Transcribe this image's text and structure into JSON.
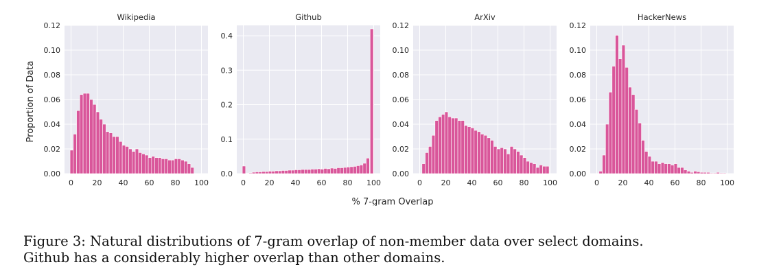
{
  "chart_data": {
    "type": "bar",
    "xlabel": "% 7-gram Overlap",
    "ylabel": "Proportion of Data",
    "xlim": [
      0,
      100
    ],
    "xticks": [
      0,
      20,
      40,
      60,
      80,
      100
    ],
    "panels": [
      {
        "title": "Wikipedia",
        "ylim": [
          0,
          0.12
        ],
        "yticks": [
          0.0,
          0.02,
          0.04,
          0.06,
          0.08,
          0.1,
          0.12
        ],
        "ytick_labels": [
          "0.00",
          "0.02",
          "0.04",
          "0.06",
          "0.08",
          "0.10",
          "0.12"
        ],
        "x": [
          0.5,
          3,
          5.5,
          8,
          10.5,
          13,
          15.5,
          18,
          20.5,
          23,
          25.5,
          28,
          30.5,
          33,
          35.5,
          38,
          40.5,
          43,
          45.5,
          48,
          50.5,
          53,
          55.5,
          58,
          60.5,
          63,
          65.5,
          68,
          70.5,
          73,
          75.5,
          78,
          80.5,
          83,
          85.5,
          88,
          90.5,
          93,
          95.5,
          98
        ],
        "values": [
          0.019,
          0.032,
          0.051,
          0.064,
          0.065,
          0.065,
          0.06,
          0.056,
          0.05,
          0.044,
          0.04,
          0.034,
          0.033,
          0.03,
          0.03,
          0.026,
          0.023,
          0.022,
          0.02,
          0.018,
          0.02,
          0.017,
          0.016,
          0.015,
          0.013,
          0.014,
          0.013,
          0.013,
          0.012,
          0.012,
          0.011,
          0.011,
          0.012,
          0.012,
          0.011,
          0.01,
          0.008,
          0.005,
          0.0,
          0.0
        ]
      },
      {
        "title": "Github",
        "ylim": [
          0,
          0.43
        ],
        "yticks": [
          0.0,
          0.1,
          0.2,
          0.3,
          0.4
        ],
        "ytick_labels": [
          "0.0",
          "0.1",
          "0.2",
          "0.3",
          "0.4"
        ],
        "x": [
          0.5,
          3,
          5.5,
          8,
          10.5,
          13,
          15.5,
          18,
          20.5,
          23,
          25.5,
          28,
          30.5,
          33,
          35.5,
          38,
          40.5,
          43,
          45.5,
          48,
          50.5,
          53,
          55.5,
          58,
          60.5,
          63,
          65.5,
          68,
          70.5,
          73,
          75.5,
          78,
          80.5,
          83,
          85.5,
          88,
          90.5,
          93,
          95.5,
          98.5
        ],
        "values": [
          0.022,
          0.001,
          0.002,
          0.004,
          0.005,
          0.005,
          0.006,
          0.006,
          0.007,
          0.007,
          0.008,
          0.008,
          0.009,
          0.009,
          0.01,
          0.01,
          0.011,
          0.011,
          0.012,
          0.012,
          0.012,
          0.013,
          0.013,
          0.014,
          0.013,
          0.015,
          0.014,
          0.016,
          0.015,
          0.017,
          0.017,
          0.018,
          0.019,
          0.02,
          0.021,
          0.023,
          0.025,
          0.03,
          0.045,
          0.42
        ]
      },
      {
        "title": "ArXiv",
        "ylim": [
          0,
          0.12
        ],
        "yticks": [
          0.0,
          0.02,
          0.04,
          0.06,
          0.08,
          0.1,
          0.12
        ],
        "ytick_labels": [
          "0.00",
          "0.02",
          "0.04",
          "0.06",
          "0.08",
          "0.10",
          "0.12"
        ],
        "x": [
          3,
          5.5,
          8,
          10.5,
          13,
          15.5,
          18,
          20.5,
          23,
          25.5,
          28,
          30.5,
          33,
          35.5,
          38,
          40.5,
          43,
          45.5,
          48,
          50.5,
          53,
          55.5,
          58,
          60.5,
          63,
          65.5,
          68,
          70.5,
          73,
          75.5,
          78,
          80.5,
          83,
          85.5,
          88,
          90.5,
          93,
          95.5,
          98
        ],
        "values": [
          0.008,
          0.017,
          0.022,
          0.031,
          0.043,
          0.046,
          0.048,
          0.05,
          0.046,
          0.045,
          0.045,
          0.043,
          0.043,
          0.039,
          0.038,
          0.037,
          0.035,
          0.034,
          0.032,
          0.031,
          0.029,
          0.027,
          0.022,
          0.02,
          0.021,
          0.02,
          0.016,
          0.022,
          0.02,
          0.018,
          0.015,
          0.013,
          0.01,
          0.009,
          0.008,
          0.005,
          0.007,
          0.006,
          0.006
        ]
      },
      {
        "title": "HackerNews",
        "ylim": [
          0,
          0.12
        ],
        "yticks": [
          0.0,
          0.02,
          0.04,
          0.06,
          0.08,
          0.1,
          0.12
        ],
        "ytick_labels": [
          "0.00",
          "0.02",
          "0.04",
          "0.06",
          "0.08",
          "0.10",
          "0.12"
        ],
        "x": [
          3,
          5.5,
          8,
          10.5,
          13,
          15.5,
          18,
          20.5,
          23,
          25.5,
          28,
          30.5,
          33,
          35.5,
          38,
          40.5,
          43,
          45.5,
          48,
          50.5,
          53,
          55.5,
          58,
          60.5,
          63,
          65.5,
          68,
          70.5,
          73,
          75.5,
          78,
          80.5,
          83,
          85.5,
          88,
          90.5,
          93,
          95.5,
          98
        ],
        "values": [
          0.002,
          0.015,
          0.04,
          0.066,
          0.087,
          0.112,
          0.093,
          0.104,
          0.086,
          0.07,
          0.064,
          0.052,
          0.041,
          0.027,
          0.018,
          0.014,
          0.01,
          0.01,
          0.008,
          0.009,
          0.008,
          0.008,
          0.007,
          0.008,
          0.005,
          0.005,
          0.003,
          0.002,
          0.001,
          0.002,
          0.0015,
          0.001,
          0.001,
          0.001,
          0.0005,
          0.0005,
          0.001,
          0.0005,
          0.0005
        ]
      }
    ]
  },
  "caption": {
    "line1": "Figure 3: Natural distributions of 7-gram overlap of non-member data over select domains.",
    "line2": "Github has a considerably higher overlap than other domains."
  }
}
